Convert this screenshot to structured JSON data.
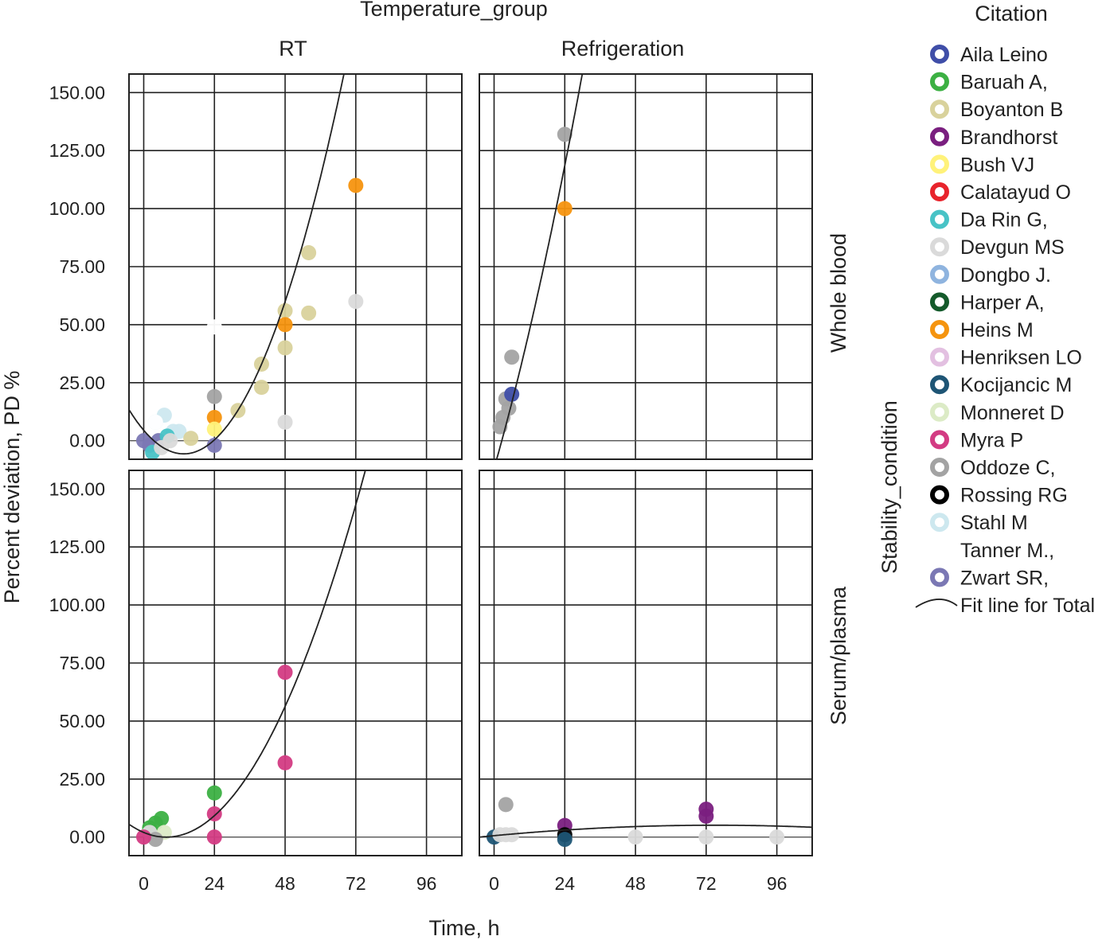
{
  "chart_data": {
    "type": "scatter",
    "title": "Temperature_group",
    "xlabel": "Time, h",
    "ylabel": "Percent deviation, PD %",
    "row_facet_label": "Stability_condition",
    "col_facets": [
      "RT",
      "Refrigeration"
    ],
    "row_facets": [
      "Whole blood",
      "Serum/plasma"
    ],
    "x_ticks": [
      "0",
      "24",
      "48",
      "72",
      "96"
    ],
    "x_tick_values": [
      0,
      24,
      48,
      72,
      96
    ],
    "y_ticks": [
      "0.00",
      "25.00",
      "50.00",
      "75.00",
      "100.00",
      "125.00",
      "150.00"
    ],
    "y_tick_values": [
      0,
      25,
      50,
      75,
      100,
      125,
      150
    ],
    "xlim": [
      -5,
      108
    ],
    "ylim": [
      -8,
      158
    ],
    "legend_title": "Citation",
    "legend_position": "right",
    "fit_label": "Fit line for Total",
    "citations": [
      {
        "name": "Aila Leino",
        "color": "#3f4ea8"
      },
      {
        "name": "Baruah A,",
        "color": "#3cb043"
      },
      {
        "name": "Boyanton B",
        "color": "#d9d29c"
      },
      {
        "name": "Brandhorst",
        "color": "#7a1f7f"
      },
      {
        "name": "Bush VJ",
        "color": "#fff27a"
      },
      {
        "name": "Calatayud O",
        "color": "#e8242c"
      },
      {
        "name": "Da Rin G,",
        "color": "#48c3c6"
      },
      {
        "name": "Devgun MS",
        "color": "#dadada"
      },
      {
        "name": "Dongbo J.",
        "color": "#8fb4df"
      },
      {
        "name": "Harper A,",
        "color": "#145a2b"
      },
      {
        "name": "Heins M",
        "color": "#f5940f"
      },
      {
        "name": "Henriksen LO",
        "color": "#e3c0e1"
      },
      {
        "name": "Kocijancic M",
        "color": "#1e5575"
      },
      {
        "name": "Monneret D",
        "color": "#dcebc6"
      },
      {
        "name": "Myra P",
        "color": "#d33b83"
      },
      {
        "name": "Oddoze C,",
        "color": "#a3a3a3"
      },
      {
        "name": "Rossing RG",
        "color": "#000000"
      },
      {
        "name": "Stahl M",
        "color": "#cde8ef"
      },
      {
        "name": "Tanner M.,",
        "color": "#ffffff"
      },
      {
        "name": "Zwart SR,",
        "color": "#7b78b4"
      }
    ],
    "panels": [
      {
        "row": "Whole blood",
        "col": "RT",
        "fit": {
          "type": "quadratic",
          "coeffs": [
            4.5,
            -1.5,
            0.0553
          ]
        },
        "points": [
          {
            "c": 19,
            "x": 0,
            "y": 0
          },
          {
            "c": 19,
            "x": 2,
            "y": -2
          },
          {
            "c": 19,
            "x": 5,
            "y": 0
          },
          {
            "c": 19,
            "x": 24,
            "y": -2
          },
          {
            "c": 17,
            "x": 4,
            "y": 8
          },
          {
            "c": 17,
            "x": 7,
            "y": 11
          },
          {
            "c": 17,
            "x": 10,
            "y": 4
          },
          {
            "c": 17,
            "x": 12,
            "y": 4
          },
          {
            "c": 6,
            "x": 3,
            "y": -5
          },
          {
            "c": 6,
            "x": 8,
            "y": 2
          },
          {
            "c": 7,
            "x": 6,
            "y": -3
          },
          {
            "c": 7,
            "x": 9,
            "y": 0
          },
          {
            "c": 18,
            "x": 4,
            "y": 8
          },
          {
            "c": 18,
            "x": 24,
            "y": 49
          },
          {
            "c": 2,
            "x": 16,
            "y": 1
          },
          {
            "c": 2,
            "x": 32,
            "y": 13
          },
          {
            "c": 2,
            "x": 40,
            "y": 23
          },
          {
            "c": 2,
            "x": 40,
            "y": 33
          },
          {
            "c": 2,
            "x": 48,
            "y": 40
          },
          {
            "c": 2,
            "x": 48,
            "y": 56
          },
          {
            "c": 2,
            "x": 56,
            "y": 55
          },
          {
            "c": 2,
            "x": 56,
            "y": 81
          },
          {
            "c": 15,
            "x": 24,
            "y": 19
          },
          {
            "c": 10,
            "x": 24,
            "y": 10
          },
          {
            "c": 10,
            "x": 48,
            "y": 50
          },
          {
            "c": 10,
            "x": 72,
            "y": 110
          },
          {
            "c": 4,
            "x": 24,
            "y": 5
          },
          {
            "c": 7,
            "x": 48,
            "y": 8
          },
          {
            "c": 7,
            "x": 72,
            "y": 60
          }
        ]
      },
      {
        "row": "Whole blood",
        "col": "Refrigeration",
        "fit": {
          "type": "quadratic",
          "coeffs": [
            -12.0,
            4.48,
            0.04
          ]
        },
        "points": [
          {
            "c": 15,
            "x": 2,
            "y": 6
          },
          {
            "c": 15,
            "x": 3,
            "y": 10
          },
          {
            "c": 15,
            "x": 4,
            "y": 18
          },
          {
            "c": 15,
            "x": 5,
            "y": 14
          },
          {
            "c": 15,
            "x": 6,
            "y": 36
          },
          {
            "c": 0,
            "x": 6,
            "y": 20
          },
          {
            "c": 15,
            "x": 24,
            "y": 132
          },
          {
            "c": 10,
            "x": 24,
            "y": 100
          }
        ]
      },
      {
        "row": "Serum/plasma",
        "col": "RT",
        "fit": {
          "type": "quadratic",
          "coeffs": [
            2.0,
            -0.53,
            0.0346
          ]
        },
        "points": [
          {
            "c": 1,
            "x": 2,
            "y": 4
          },
          {
            "c": 1,
            "x": 4,
            "y": 6
          },
          {
            "c": 1,
            "x": 6,
            "y": 8
          },
          {
            "c": 13,
            "x": 7,
            "y": 2
          },
          {
            "c": 7,
            "x": 2,
            "y": 2
          },
          {
            "c": 15,
            "x": 4,
            "y": -1
          },
          {
            "c": 14,
            "x": 0,
            "y": 0
          },
          {
            "c": 1,
            "x": 24,
            "y": 19
          },
          {
            "c": 14,
            "x": 24,
            "y": 10
          },
          {
            "c": 14,
            "x": 24,
            "y": 0
          },
          {
            "c": 14,
            "x": 48,
            "y": 71
          },
          {
            "c": 14,
            "x": 48,
            "y": 32
          }
        ]
      },
      {
        "row": "Serum/plasma",
        "col": "Refrigeration",
        "fit": {
          "type": "quadratic",
          "coeffs": [
            0.6,
            0.12,
            -0.0008
          ]
        },
        "points": [
          {
            "c": 12,
            "x": 0,
            "y": 0
          },
          {
            "c": 7,
            "x": 2,
            "y": 1
          },
          {
            "c": 7,
            "x": 4,
            "y": 1
          },
          {
            "c": 7,
            "x": 6,
            "y": 1
          },
          {
            "c": 15,
            "x": 4,
            "y": 14
          },
          {
            "c": 3,
            "x": 24,
            "y": 5
          },
          {
            "c": 16,
            "x": 24,
            "y": 1
          },
          {
            "c": 12,
            "x": 24,
            "y": -1
          },
          {
            "c": 7,
            "x": 48,
            "y": 0
          },
          {
            "c": 3,
            "x": 72,
            "y": 12
          },
          {
            "c": 3,
            "x": 72,
            "y": 9
          },
          {
            "c": 7,
            "x": 72,
            "y": 0
          },
          {
            "c": 7,
            "x": 96,
            "y": 0
          }
        ]
      }
    ]
  }
}
